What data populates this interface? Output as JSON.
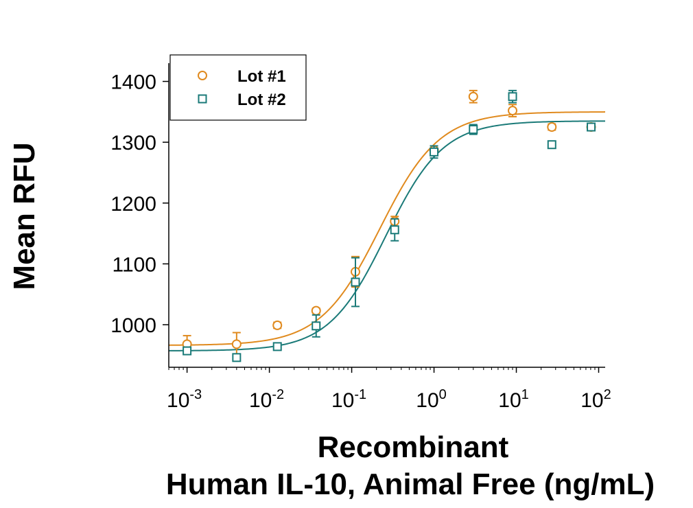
{
  "chart_data": {
    "type": "scatter",
    "title": "",
    "xlabel_line1": "Recombinant",
    "xlabel_line2": "Human IL-10, Animal Free (ng/mL)",
    "ylabel": "Mean RFU",
    "x_scale": "log",
    "xlim": [
      0.0006,
      120
    ],
    "ylim": [
      930,
      1430
    ],
    "x_ticks": [
      {
        "value": 0.001,
        "base": "10",
        "exp": "-3"
      },
      {
        "value": 0.01,
        "base": "10",
        "exp": "-2"
      },
      {
        "value": 0.1,
        "base": "10",
        "exp": "-1"
      },
      {
        "value": 1,
        "base": "10",
        "exp": "0"
      },
      {
        "value": 10,
        "base": "10",
        "exp": "1"
      },
      {
        "value": 100,
        "base": "10",
        "exp": "2"
      }
    ],
    "y_ticks": [
      {
        "value": 1000,
        "label": "1000"
      },
      {
        "value": 1100,
        "label": "1100"
      },
      {
        "value": 1200,
        "label": "1200"
      },
      {
        "value": 1300,
        "label": "1300"
      },
      {
        "value": 1400,
        "label": "1400"
      }
    ],
    "legend_position": "top-left",
    "series": [
      {
        "name": "Lot #1",
        "marker": "circle",
        "color": "#E08A1E",
        "x": [
          0.001,
          0.004,
          0.0125,
          0.037,
          0.111,
          0.333,
          1,
          3,
          9,
          27,
          81
        ],
        "y": [
          968,
          968,
          999,
          1023,
          1087,
          1170,
          1287,
          1375,
          1352,
          1325,
          1325
        ],
        "err": [
          14,
          19,
          5,
          4,
          25,
          8,
          7,
          10,
          10,
          5,
          5
        ],
        "fit": {
          "bottom": 966,
          "top": 1350,
          "ec50": 0.22,
          "hill": 1.2
        }
      },
      {
        "name": "Lot #2",
        "marker": "square",
        "color": "#1A7A78",
        "x": [
          0.001,
          0.004,
          0.0125,
          0.037,
          0.111,
          0.333,
          1,
          3,
          9,
          27,
          81
        ],
        "y": [
          957,
          946,
          964,
          998,
          1070,
          1156,
          1284,
          1321,
          1375,
          1296,
          1325
        ],
        "err": [
          6,
          3,
          5,
          18,
          40,
          18,
          10,
          8,
          10,
          3,
          5
        ],
        "fit": {
          "bottom": 957,
          "top": 1335,
          "ec50": 0.26,
          "hill": 1.25
        }
      }
    ]
  }
}
